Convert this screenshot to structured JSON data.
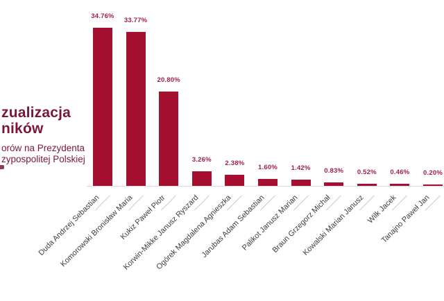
{
  "page": {
    "background": "#FFFFFF"
  },
  "title_block": {
    "line1": "zualizacja",
    "line2": "ników",
    "subtitle_line1": "orów na Prezydenta",
    "subtitle_line2": "zypospolitej Polskiej",
    "text_color": "#7B1735"
  },
  "chart_data": {
    "type": "bar",
    "title": "",
    "xlabel": "",
    "ylabel": "",
    "categories": [
      "Duda Andrzej Sebastian",
      "Komorowski Bronisław Maria",
      "Kukiz Paweł Piotr",
      "Korwin-Mikke Janusz Ryszard",
      "Ogórek Magdalena Agnieszka",
      "Jarubas Adam Sebastian",
      "Palikot Janusz Marian",
      "Braun Grzegorz Michał",
      "Kowalski Marian Janusz",
      "Wilk Jacek",
      "Tanajno Paweł Jan"
    ],
    "values": [
      34.76,
      33.77,
      20.8,
      3.26,
      2.38,
      1.6,
      1.42,
      0.83,
      0.52,
      0.46,
      0.2
    ],
    "value_labels": [
      "34.76%",
      "33.77%",
      "20.80%",
      "3.26%",
      "2.38%",
      "1.60%",
      "1.42%",
      "0.83%",
      "0.52%",
      "0.46%",
      "0.20%"
    ],
    "ylim": [
      0,
      35
    ],
    "grid": false,
    "legend": false,
    "category_labels_rotation_deg": 45,
    "bar_color": "#A51031",
    "value_label_color": "#A02048",
    "category_label_color": "#3D3D3D",
    "axis_line_color": "#D8D8D8",
    "tick_line_color": "#CCCCCC"
  }
}
